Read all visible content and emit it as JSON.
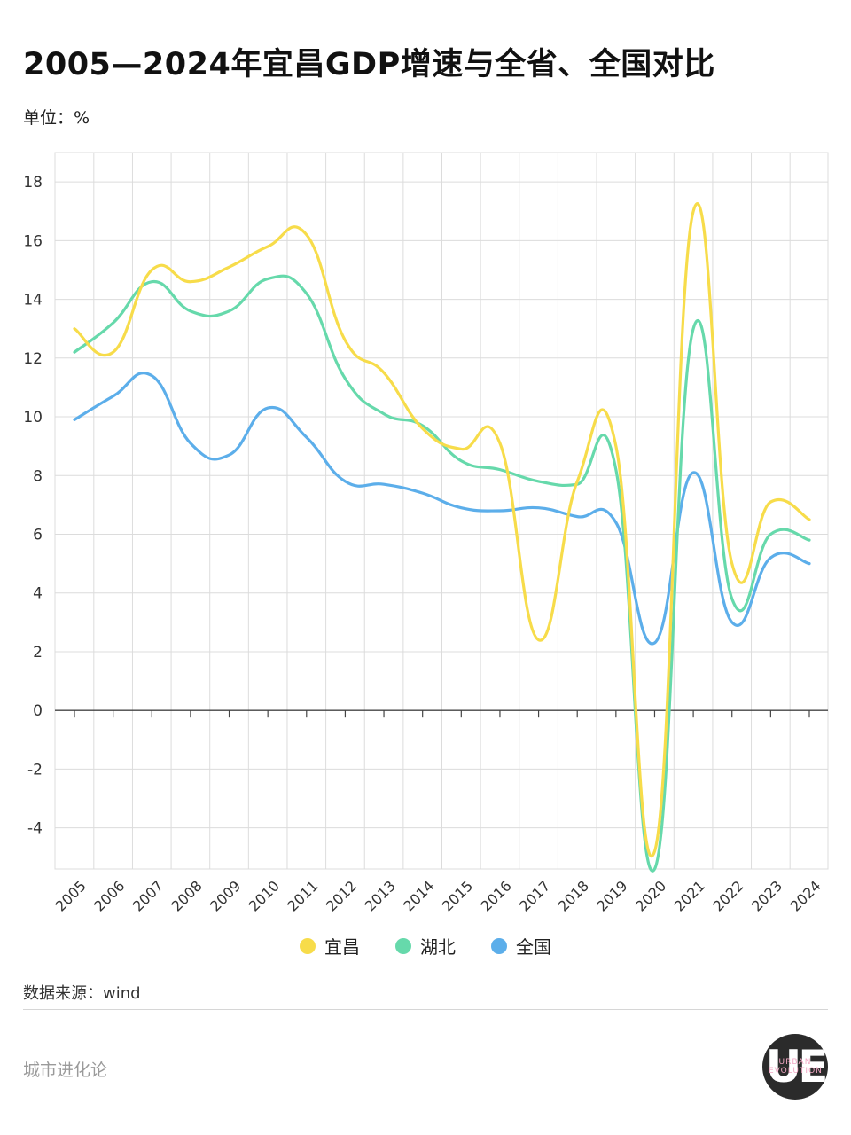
{
  "header": {
    "title": "2005—2024年宜昌GDP增速与全省、全国对比",
    "unit": "单位：%"
  },
  "chart_data": {
    "type": "line",
    "title": "2005—2024年宜昌GDP增速与全省、全国对比",
    "ylabel": "单位：%",
    "xlabel": "",
    "ylim": [
      -5.4,
      19
    ],
    "yticks": [
      18,
      16,
      14,
      12,
      10,
      8,
      6,
      4,
      2,
      0,
      -2,
      -4
    ],
    "categories": [
      "2005",
      "2006",
      "2007",
      "2008",
      "2009",
      "2010",
      "2011",
      "2012",
      "2013",
      "2014",
      "2015",
      "2016",
      "2017",
      "2018",
      "2019",
      "2020",
      "2021",
      "2022",
      "2023",
      "2024"
    ],
    "grid": true,
    "legend": "bottom-center",
    "series": [
      {
        "name": "宜昌",
        "color": "#f7dc4a",
        "values": [
          13.0,
          12.2,
          15.0,
          14.6,
          15.1,
          15.8,
          16.2,
          12.6,
          11.5,
          9.6,
          8.9,
          9.1,
          2.4,
          7.8,
          9.0,
          -4.8,
          17.0,
          5.0,
          7.1,
          6.5
        ]
      },
      {
        "name": "湖北",
        "color": "#66d9ab",
        "values": [
          12.2,
          13.2,
          14.6,
          13.6,
          13.6,
          14.7,
          14.2,
          11.3,
          10.1,
          9.7,
          8.5,
          8.2,
          7.8,
          7.7,
          8.2,
          -5.4,
          13.0,
          3.8,
          6.0,
          5.8
        ]
      },
      {
        "name": "全国",
        "color": "#5caeea",
        "values": [
          9.9,
          10.7,
          11.4,
          9.1,
          8.7,
          10.3,
          9.3,
          7.8,
          7.7,
          7.4,
          6.9,
          6.8,
          6.9,
          6.6,
          6.4,
          2.3,
          8.1,
          3.0,
          5.2,
          5.0
        ]
      }
    ]
  },
  "legend": {
    "items": [
      {
        "label": "宜昌",
        "color": "#f7dc4a"
      },
      {
        "label": "湖北",
        "color": "#66d9ab"
      },
      {
        "label": "全国",
        "color": "#5caeea"
      }
    ]
  },
  "footer": {
    "source": "数据来源：wind",
    "brand": "城市进化论",
    "logo_main": "UE",
    "logo_small": "URBAN EVOLUTION"
  }
}
